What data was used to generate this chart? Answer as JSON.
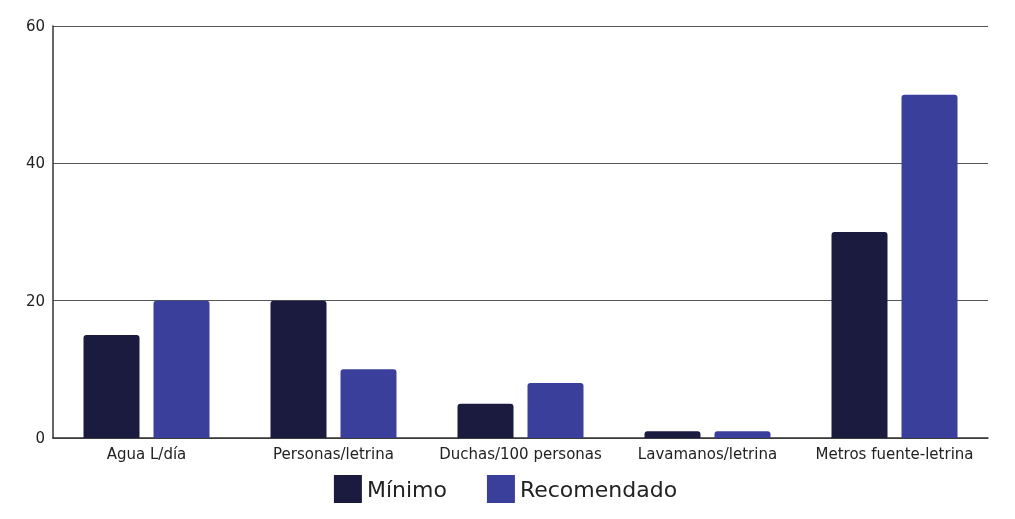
{
  "chart_data": {
    "type": "bar",
    "categories": [
      "Agua L/día",
      "Personas/letrina",
      "Duchas/100 personas",
      "Lavamanos/letrina",
      "Metros fuente-letrina"
    ],
    "series": [
      {
        "name": "Mínimo",
        "color": "#1b1b40",
        "values": [
          15,
          20,
          5,
          1,
          30
        ]
      },
      {
        "name": "Recomendado",
        "color": "#3b3f9c",
        "values": [
          20,
          10,
          8,
          1,
          50
        ]
      }
    ],
    "ylim": [
      0,
      60
    ],
    "yticks": [
      0,
      20,
      40,
      60
    ],
    "grid": "y",
    "legend": "bottom"
  }
}
